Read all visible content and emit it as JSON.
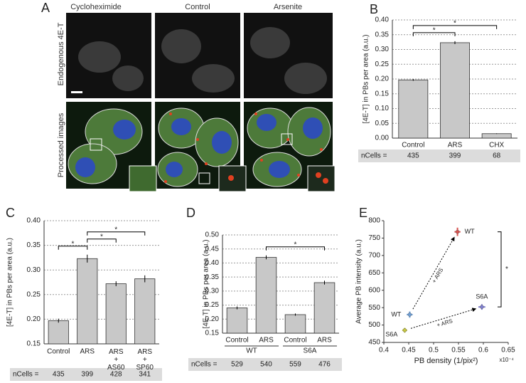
{
  "figure": {
    "panel_a": {
      "label": "A",
      "columns": [
        "Cycloheximide",
        "Control",
        "Arsenite"
      ],
      "rows": [
        "Endogenous 4E-T",
        "Processed images"
      ]
    }
  },
  "chart_data": [
    {
      "type": "bar",
      "label": "B",
      "ylabel": "[4E-T] in PBs per area (a.u.)",
      "categories": [
        "Control",
        "ARS",
        "CHX"
      ],
      "values": [
        0.197,
        0.323,
        0.015
      ],
      "errors": [
        0.003,
        0.005,
        0.001
      ],
      "color": "#c8c8c8",
      "ylim": [
        0,
        0.4
      ],
      "yticks": [
        {
          "value": 0,
          "label": "0.00"
        },
        0.05,
        {
          "value": 0.1,
          "label": "0.10"
        },
        0.15,
        {
          "value": 0.2,
          "label": "0.20"
        },
        0.25,
        {
          "value": 0.3,
          "label": "0.30"
        },
        0.35,
        {
          "value": 0.4,
          "label": "0.40"
        }
      ],
      "grid": true,
      "significance": [
        {
          "label": "*",
          "between": [
            0,
            1
          ]
        },
        {
          "label": "*",
          "between": [
            0,
            2
          ]
        }
      ],
      "table": {
        "label": "nCells =",
        "values": [
          435,
          399,
          68
        ]
      }
    },
    {
      "type": "bar",
      "label": "C",
      "ylabel": "[4E-T] in PBs per area (a.u.)",
      "categories": [
        "Control",
        "ARS",
        "ARS\n+\nAS60",
        "ARS\n+\nSP60"
      ],
      "values": [
        0.197,
        0.323,
        0.272,
        0.282
      ],
      "errors": [
        0.004,
        0.008,
        0.005,
        0.007
      ],
      "color": "#c8c8c8",
      "ylim": [
        0.15,
        0.4
      ],
      "yticks": [
        0.15,
        {
          "value": 0.2,
          "label": "0.20"
        },
        0.25,
        {
          "value": 0.3,
          "label": "0.30"
        },
        0.35,
        {
          "value": 0.4,
          "label": "0.40"
        }
      ],
      "grid": true,
      "significance": [
        {
          "label": "*",
          "between": [
            0,
            1
          ]
        },
        {
          "label": "*",
          "between": [
            1,
            2
          ]
        },
        {
          "label": "*",
          "between": [
            1,
            3
          ]
        }
      ],
      "table": {
        "label": "nCells =",
        "values": [
          435,
          399,
          428,
          341
        ]
      }
    },
    {
      "type": "bar",
      "label": "D",
      "ylabel": "[4E-T] in PBs per area (a.u.)",
      "groups": [
        {
          "name": "WT",
          "categories": [
            "Control",
            "ARS"
          ]
        },
        {
          "name": "S6A",
          "categories": [
            "Control",
            "ARS"
          ]
        }
      ],
      "values": [
        0.24,
        0.42,
        0.216,
        0.33
      ],
      "errors": [
        0.005,
        0.007,
        0.004,
        0.007
      ],
      "color": "#c8c8c8",
      "ylim": [
        0.15,
        0.5
      ],
      "yticks": [
        0.15,
        {
          "value": 0.2,
          "label": "0.20"
        },
        0.25,
        {
          "value": 0.3,
          "label": "0.30"
        },
        0.35,
        {
          "value": 0.4,
          "label": "0.40"
        },
        0.45,
        {
          "value": 0.5,
          "label": "0.50"
        }
      ],
      "grid": true,
      "significance": [
        {
          "label": "*",
          "between": [
            1,
            3
          ]
        }
      ],
      "table": {
        "label": "nCells =",
        "values": [
          529,
          540,
          559,
          476
        ]
      }
    },
    {
      "type": "scatter",
      "label": "E",
      "xlabel": "PB density (1/pix²)",
      "ylabel": "Average PB intensity (a.u.)",
      "x_multiplier": "x10⁻⁴",
      "xlim": [
        0.4,
        0.65
      ],
      "xticks": [
        0.4,
        0.45,
        0.5,
        0.55,
        0.6,
        0.65
      ],
      "ylim": [
        450,
        800
      ],
      "yticks": [
        450,
        500,
        550,
        600,
        650,
        700,
        750,
        800
      ],
      "points": [
        {
          "label": "WT",
          "x": 0.452,
          "y": 530,
          "xerr": 0.006,
          "yerr": 9,
          "color": "#6fa0d8"
        },
        {
          "label": "WT",
          "x": 0.548,
          "y": 768,
          "xerr": 0.006,
          "yerr": 12,
          "color": "#d9534f"
        },
        {
          "label": "S6A",
          "x": 0.442,
          "y": 485,
          "xerr": 0.005,
          "yerr": 7,
          "color": "#c8c840"
        },
        {
          "label": "S6A",
          "x": 0.597,
          "y": 552,
          "xerr": 0.007,
          "yerr": 8,
          "color": "#7f7fd0"
        }
      ],
      "arrows": [
        {
          "label": "+ ARS",
          "from": 0,
          "to": 1
        },
        {
          "label": "+ ARS",
          "from": 2,
          "to": 3
        }
      ],
      "significance": [
        {
          "label": "*",
          "between": [
            1,
            3
          ]
        }
      ]
    }
  ]
}
